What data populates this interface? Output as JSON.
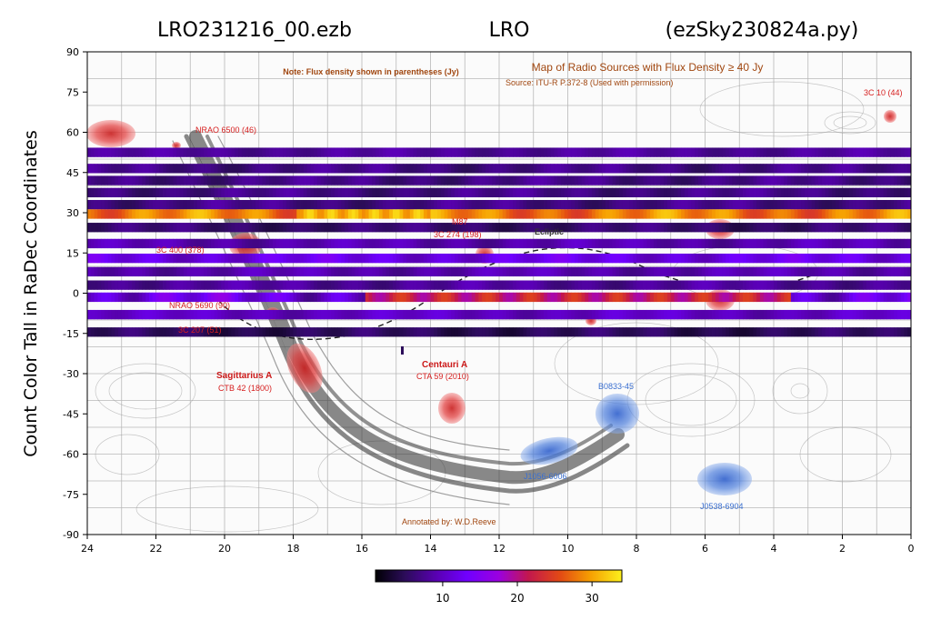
{
  "figure": {
    "title_left": "LRO231216_00.ezb",
    "title_center": "LRO",
    "title_right": "(ezSky230824a.py)",
    "ylabel": "Count Color Tall in RaDec Coordinates"
  },
  "background_map": {
    "note": "Note: Flux density shown in parentheses (Jy)",
    "map_title": "Map of Radio Sources with Flux Density ≥ 40 Jy",
    "source": "Source: ITU-R P.372-8 (Used with permission)",
    "annotated_by": "Annotated by: W.D.Reeve",
    "ecliptic_label": "Ecliptic",
    "labels": [
      {
        "text": "NRAO 6500 (46)",
        "style": "red"
      },
      {
        "text": "3C 10 (44)",
        "style": "red"
      },
      {
        "text": "3C 400 (378)",
        "style": "red"
      },
      {
        "text": "M87",
        "style": "red"
      },
      {
        "text": "3C 274 (198)",
        "style": "red"
      },
      {
        "text": "NRAO 5690 (90)",
        "style": "red"
      },
      {
        "text": "3C 207 (51)",
        "style": "red"
      },
      {
        "text": "Sagittarius A",
        "style": "redbold"
      },
      {
        "text": "CTB 42 (1800)",
        "style": "red"
      },
      {
        "text": "Centauri A",
        "style": "redbold"
      },
      {
        "text": "CTA 59 (2010)",
        "style": "red"
      },
      {
        "text": "B0833-45",
        "style": "blue"
      },
      {
        "text": "J1056-6006",
        "style": "blue"
      },
      {
        "text": "J0538-6904",
        "style": "blue"
      }
    ]
  },
  "colors": {
    "colormap": [
      "#000004",
      "#2c0c5a",
      "#5a00b4",
      "#7000ff",
      "#9b00e0",
      "#c2174e",
      "#e34a14",
      "#f69e02",
      "#fcf01c"
    ],
    "source_red": "#e53b3b",
    "source_blue": "#4e7fdc"
  },
  "chart_data": {
    "type": "heatmap",
    "title": "LRO231216_00.ezb LRO (ezSky230824a.py)",
    "xlabel": "",
    "ylabel": "Count Color Tall in RaDec Coordinates",
    "xlim": [
      24,
      0
    ],
    "ylim": [
      -90,
      90
    ],
    "xticks": [
      24,
      22,
      20,
      18,
      16,
      14,
      12,
      10,
      8,
      6,
      4,
      2,
      0
    ],
    "yticks": [
      90,
      75,
      60,
      45,
      30,
      15,
      0,
      -15,
      -30,
      -45,
      -60,
      -75,
      -90
    ],
    "colorbar": {
      "range": [
        1,
        34
      ],
      "ticks": [
        10,
        20,
        30
      ],
      "colormap": "gnuplot"
    },
    "declination_strips": [
      {
        "dec": 52.5,
        "height": 3.5,
        "base": 8,
        "var": 1.5
      },
      {
        "dec": 46.5,
        "height": 3.5,
        "base": 7,
        "var": 2
      },
      {
        "dec": 42,
        "height": 3.5,
        "base": 7,
        "var": 2
      },
      {
        "dec": 37.5,
        "height": 3.5,
        "base": 7,
        "var": 2
      },
      {
        "dec": 33,
        "height": 3.5,
        "base": 7,
        "var": 2
      },
      {
        "dec": 29.5,
        "height": 3.5,
        "base": 28,
        "var": 4
      },
      {
        "dec": 24.5,
        "height": 3.5,
        "base": 6,
        "var": 2
      },
      {
        "dec": 18.5,
        "height": 3.5,
        "base": 9,
        "var": 2
      },
      {
        "dec": 13,
        "height": 3.5,
        "base": 12,
        "var": 3
      },
      {
        "dec": 8,
        "height": 3.5,
        "base": 9,
        "var": 2
      },
      {
        "dec": 3,
        "height": 3.5,
        "base": 8,
        "var": 2
      },
      {
        "dec": -1.5,
        "height": 3.5,
        "base": 12,
        "var": 5
      },
      {
        "dec": -8,
        "height": 3.5,
        "base": 10,
        "var": 2
      },
      {
        "dec": -14.5,
        "height": 3.5,
        "base": 5,
        "var": 2
      }
    ]
  }
}
